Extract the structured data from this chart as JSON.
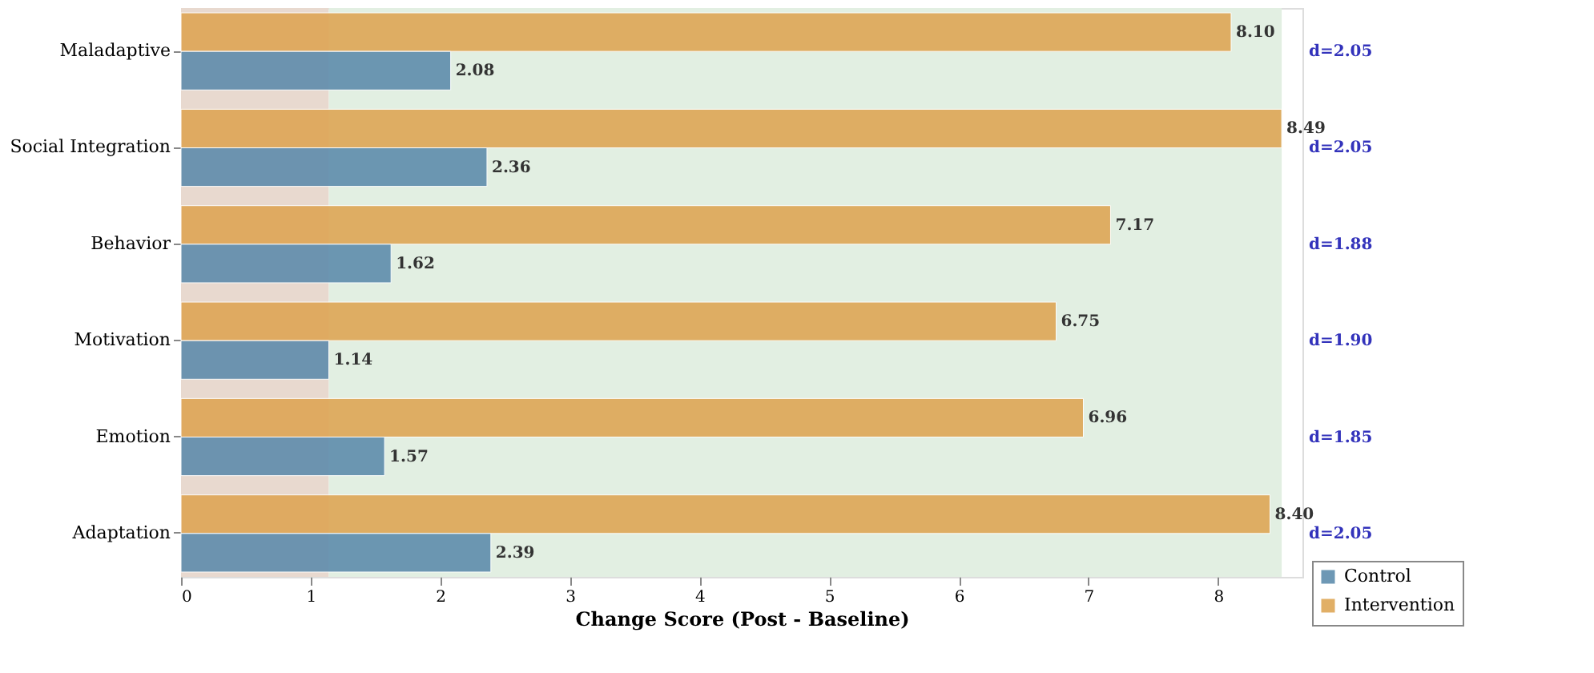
{
  "chart_data": {
    "type": "bar",
    "orientation": "horizontal",
    "xlabel": "Change Score (Post - Baseline)",
    "categories": [
      "Maladaptive",
      "Social Integration",
      "Behavior",
      "Motivation",
      "Emotion",
      "Adaptation"
    ],
    "series": [
      {
        "name": "Intervention",
        "color": "#dea452",
        "values": [
          8.1,
          8.49,
          7.17,
          6.75,
          6.96,
          8.4
        ],
        "value_labels": [
          "8.10",
          "8.49",
          "7.17",
          "6.75",
          "6.96",
          "8.40"
        ]
      },
      {
        "name": "Control",
        "color": "#5b8aab",
        "values": [
          2.08,
          2.36,
          1.62,
          1.14,
          1.57,
          2.39
        ],
        "value_labels": [
          "2.08",
          "2.36",
          "1.62",
          "1.14",
          "1.57",
          "2.39"
        ]
      }
    ],
    "xlim": [
      0,
      8.65
    ],
    "xticks": [
      0,
      1,
      2,
      3,
      4,
      5,
      6,
      7,
      8
    ],
    "grid": "x",
    "legend": "bottom right",
    "bands": [
      {
        "axis": "x",
        "from": 0,
        "to": 1.14,
        "color": "#e8d9cf"
      },
      {
        "axis": "x",
        "from": 1.14,
        "to": 8.49,
        "color": "#e2efe2"
      }
    ],
    "annotations": [
      "d=2.05",
      "d=2.05",
      "d=1.88",
      "d=1.90",
      "d=1.85",
      "d=2.05"
    ]
  }
}
